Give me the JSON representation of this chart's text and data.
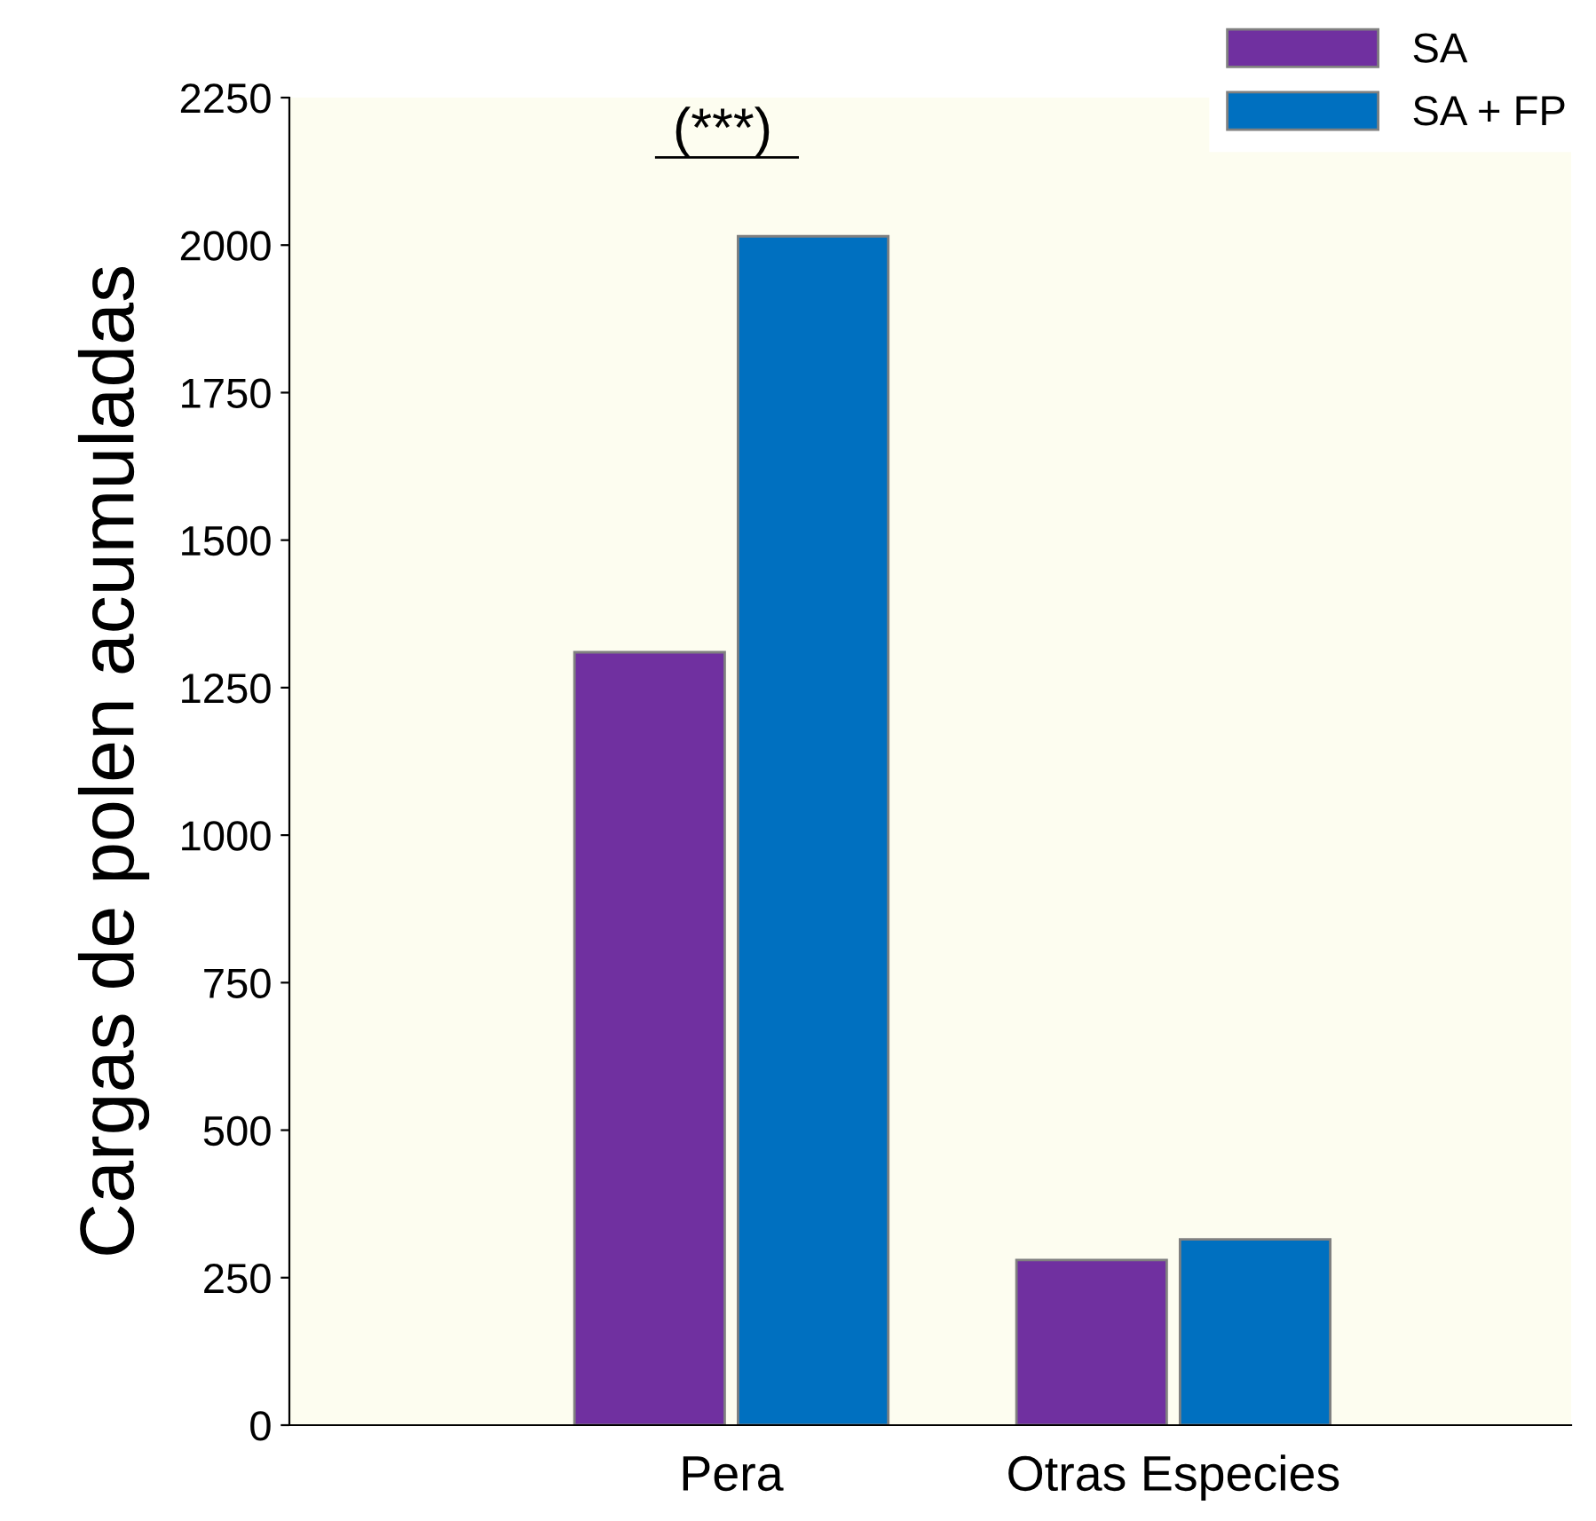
{
  "chart_data": {
    "type": "bar",
    "ylabel": "Cargas de polen acumuladas",
    "categories": [
      "Pera",
      "Otras Especies"
    ],
    "series": [
      {
        "name": "SA",
        "color": "#7030a0",
        "values": [
          1310,
          280
        ]
      },
      {
        "name": "SA + FP",
        "color": "#0070c0",
        "values": [
          2015,
          315
        ]
      }
    ],
    "ylim": [
      0,
      2250
    ],
    "yticks": [
      0,
      250,
      500,
      750,
      1000,
      1250,
      1500,
      1750,
      2000,
      2250
    ],
    "annotations": [
      "(***)"
    ],
    "grid": false,
    "legend": "top right"
  }
}
